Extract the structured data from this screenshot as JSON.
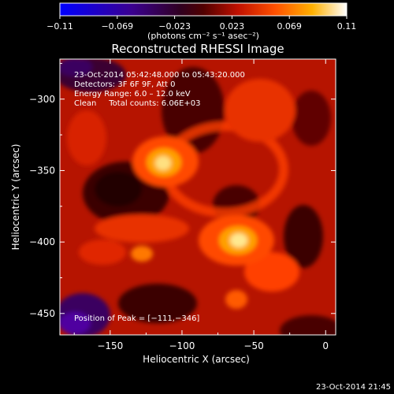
{
  "chart_data": {
    "type": "heatmap",
    "title": "Reconstructed RHESSI Image",
    "xlabel": "Heliocentric X (arcsec)",
    "ylabel": "Heliocentric Y (arcsec)",
    "xlim": [
      -185,
      7
    ],
    "ylim": [
      -465,
      -272
    ],
    "x_ticks": [
      -150,
      -100,
      -50,
      0
    ],
    "y_ticks": [
      -300,
      -350,
      -400,
      -450
    ],
    "x_tick_labels": [
      "−150",
      "−100",
      "−50",
      "0"
    ],
    "y_tick_labels": [
      "−300",
      "−350",
      "−400",
      "−450"
    ],
    "colorbar": {
      "range": [
        -0.11,
        0.11
      ],
      "tick_labels": [
        "−0.11",
        "−0.069",
        "−0.023",
        "0.023",
        "0.069",
        "0.11"
      ],
      "units_label": "(photons cm⁻² s⁻¹ asec⁻²)"
    },
    "colormap": [
      "#0000ff",
      "#3a00b0",
      "#3a0030",
      "#000000",
      "#6a0000",
      "#c01000",
      "#ff5000",
      "#ffb000",
      "#ffff90",
      "#ffffff"
    ],
    "annotations": {
      "time_range": "23‐Oct‐2014 05:42:48.000 to 05:43:20.000",
      "detectors": "Detectors: 3F 6F 9F, Att 0",
      "energy_range": "Energy Range: 6.0 – 12.0 keV",
      "method_counts": "Clean     Total counts: 6.06E+03",
      "peak_position": "Position of Peak = [−111,−346]"
    },
    "sources": [
      {
        "x": -111,
        "y": -346,
        "peak": 0.11
      },
      {
        "x": -60,
        "y": -400,
        "peak": 0.105
      }
    ],
    "timestamp": "23‐Oct‐2014 21:45"
  }
}
